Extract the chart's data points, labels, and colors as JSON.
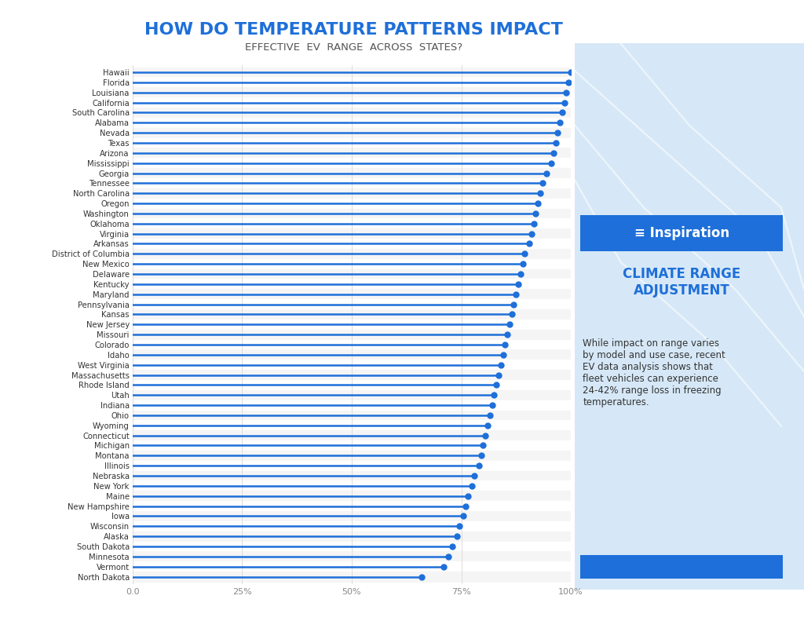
{
  "title_line1": "HOW DO TEMPERATURE PATTERNS IMPACT",
  "title_line2": "EFFECTIVE  EV  RANGE  ACROSS  STATES?",
  "states": [
    "Hawaii",
    "Florida",
    "Louisiana",
    "California",
    "South Carolina",
    "Alabama",
    "Nevada",
    "Texas",
    "Arizona",
    "Mississippi",
    "Georgia",
    "Tennessee",
    "North Carolina",
    "Oregon",
    "Washington",
    "Oklahoma",
    "Virginia",
    "Arkansas",
    "District of Columbia",
    "New Mexico",
    "Delaware",
    "Kentucky",
    "Maryland",
    "Pennsylvania",
    "Kansas",
    "New Jersey",
    "Missouri",
    "Colorado",
    "Idaho",
    "West Virginia",
    "Massachusetts",
    "Rhode Island",
    "Utah",
    "Indiana",
    "Ohio",
    "Wyoming",
    "Connecticut",
    "Michigan",
    "Montana",
    "Illinois",
    "Nebraska",
    "New York",
    "Maine",
    "New Hampshire",
    "Iowa",
    "Wisconsin",
    "Alaska",
    "South Dakota",
    "Minnesota",
    "Vermont",
    "North Dakota"
  ],
  "values": [
    1.0,
    0.995,
    0.99,
    0.985,
    0.98,
    0.975,
    0.97,
    0.965,
    0.96,
    0.955,
    0.945,
    0.935,
    0.93,
    0.925,
    0.92,
    0.915,
    0.91,
    0.905,
    0.895,
    0.89,
    0.885,
    0.88,
    0.875,
    0.87,
    0.865,
    0.86,
    0.855,
    0.85,
    0.845,
    0.84,
    0.835,
    0.83,
    0.825,
    0.82,
    0.815,
    0.81,
    0.805,
    0.8,
    0.795,
    0.79,
    0.78,
    0.775,
    0.765,
    0.76,
    0.755,
    0.745,
    0.74,
    0.73,
    0.72,
    0.71,
    0.66
  ],
  "bar_color": "#1E6FD9",
  "dot_color": "#1E6FD9",
  "bg_color": "#FFFFFF",
  "line_color": "#CCCCCC",
  "title_color1": "#1E6FD9",
  "title_color2": "#555555",
  "xlabel_ticks": [
    "0.0",
    "25%",
    "50%",
    "75%",
    "100%"
  ],
  "xlabel_tick_vals": [
    0.0,
    0.25,
    0.5,
    0.75,
    1.0
  ],
  "annotation_box_color": "#1E6FD9",
  "annotation_title": "CLIMATE RANGE\nADJUSTMENT",
  "annotation_title_color": "#1E6FD9",
  "annotation_body": "While impact on range varies\nby model and use case, recent\nEV data analysis shows that\nfleet vehicles can experience\n24-42% range loss in freezing\ntemperatures.",
  "annotation_body_color": "#333333",
  "logo_text": "≡ Inspiration",
  "logo_bg": "#1E6FD9",
  "logo_text_color": "#FFFFFF",
  "map_bg_color": "#D6E8F7"
}
